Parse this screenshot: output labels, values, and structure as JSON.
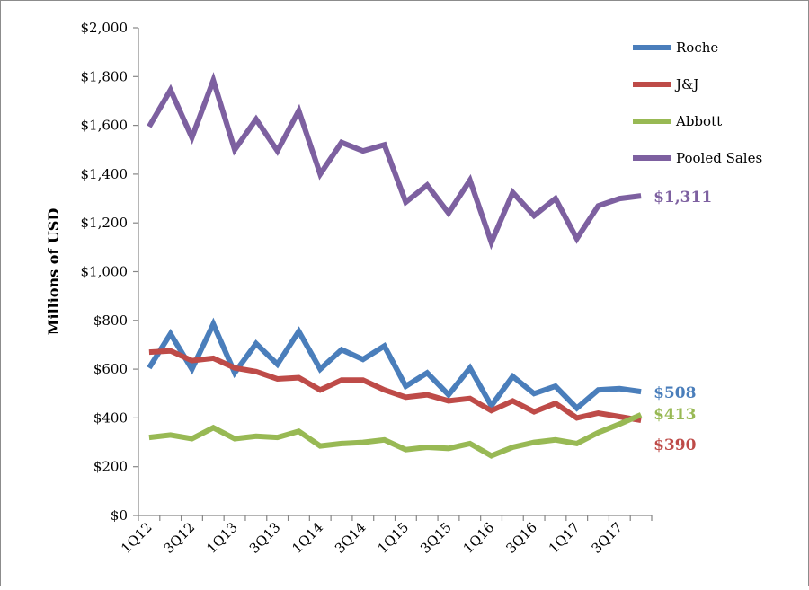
{
  "chart_data": {
    "type": "line",
    "title": "",
    "xlabel": "",
    "ylabel": "Millions of USD",
    "ylim": [
      0,
      2000
    ],
    "y_ticks": [
      0,
      200,
      400,
      600,
      800,
      1000,
      1200,
      1400,
      1600,
      1800,
      2000
    ],
    "y_tick_labels": [
      "$0",
      "$200",
      "$400",
      "$600",
      "$800",
      "$1,000",
      "$1,200",
      "$1,400",
      "$1,600",
      "$1,800",
      "$2,000"
    ],
    "categories": [
      "1Q12",
      "2Q12",
      "3Q12",
      "4Q12",
      "1Q13",
      "2Q13",
      "3Q13",
      "4Q13",
      "1Q14",
      "2Q14",
      "3Q14",
      "4Q14",
      "1Q15",
      "2Q15",
      "3Q15",
      "4Q15",
      "1Q16",
      "2Q16",
      "3Q16",
      "4Q16",
      "1Q17",
      "2Q17",
      "3Q17",
      "4Q17"
    ],
    "x_tick_labels": [
      "1Q12",
      "3Q12",
      "1Q13",
      "3Q13",
      "1Q14",
      "3Q14",
      "1Q15",
      "3Q15",
      "1Q16",
      "3Q16",
      "1Q17",
      "3Q17"
    ],
    "grid": false,
    "legend_position": "top-right",
    "series": [
      {
        "name": "Roche",
        "color": "#4a7ebb",
        "end_label": "$508",
        "values": [
          605,
          745,
          600,
          785,
          585,
          705,
          620,
          755,
          600,
          680,
          640,
          695,
          530,
          585,
          495,
          605,
          450,
          570,
          500,
          530,
          440,
          515,
          520,
          508
        ]
      },
      {
        "name": "J&J",
        "color": "#be4b48",
        "end_label": "$390",
        "values": [
          670,
          675,
          635,
          645,
          605,
          590,
          560,
          565,
          515,
          555,
          555,
          515,
          485,
          495,
          470,
          480,
          430,
          470,
          425,
          460,
          400,
          420,
          405,
          390
        ]
      },
      {
        "name": "Abbott",
        "color": "#98b954",
        "end_label": "$413",
        "values": [
          320,
          330,
          315,
          360,
          315,
          325,
          320,
          345,
          285,
          295,
          300,
          310,
          270,
          280,
          275,
          295,
          245,
          280,
          300,
          310,
          295,
          340,
          375,
          413
        ]
      },
      {
        "name": "Pooled Sales",
        "color": "#7d60a0",
        "end_label": "$1,311",
        "values": [
          1595,
          1745,
          1550,
          1785,
          1500,
          1625,
          1495,
          1660,
          1400,
          1530,
          1495,
          1520,
          1285,
          1355,
          1240,
          1375,
          1120,
          1325,
          1230,
          1300,
          1135,
          1270,
          1300,
          1311
        ]
      }
    ]
  }
}
